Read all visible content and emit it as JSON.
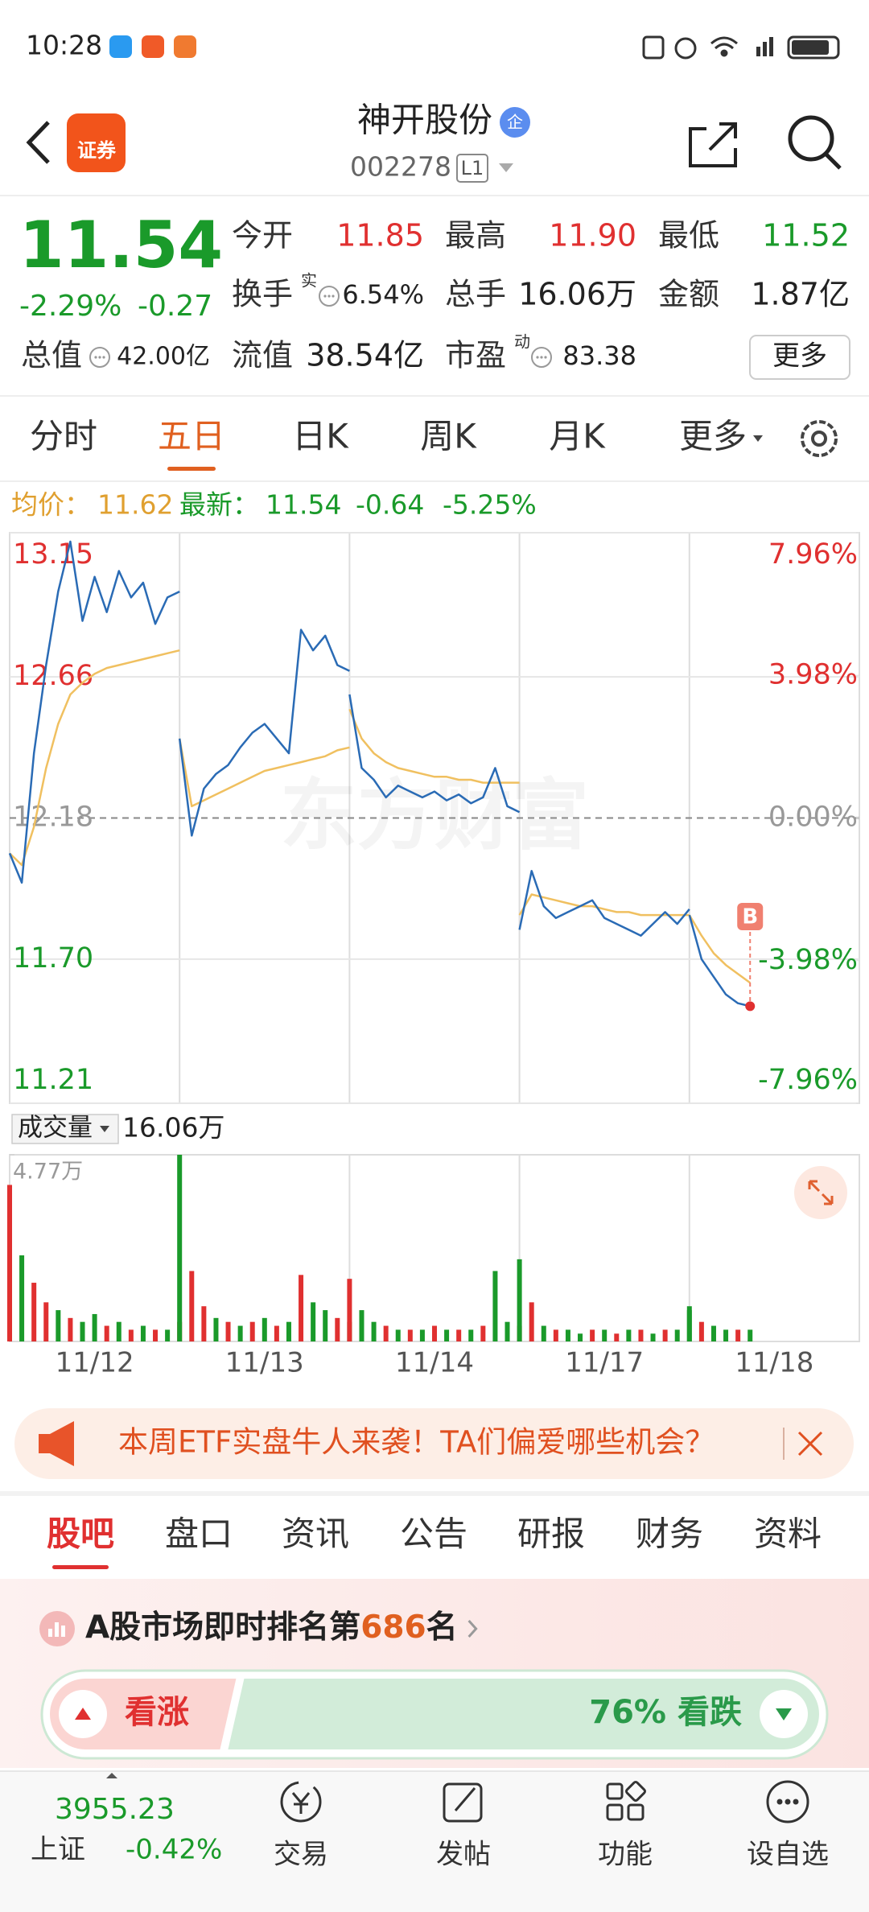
{
  "status_bar": {
    "time": "10:28"
  },
  "header": {
    "app_label": "证券",
    "title": "神开股份",
    "badge": "企",
    "code": "002278",
    "level": "L1"
  },
  "quote": {
    "price": "11.54",
    "change_pct": "-2.29%",
    "change": "-0.27",
    "stats": [
      {
        "label": "今开",
        "value": "11.85",
        "color": "#e03030"
      },
      {
        "label": "最高",
        "value": "11.90",
        "color": "#e03030"
      },
      {
        "label": "最低",
        "value": "11.52",
        "color": "#1a9a2a"
      },
      {
        "label": "换手",
        "sup": "实",
        "value": "6.54%"
      },
      {
        "label": "总手",
        "value": "16.06万"
      },
      {
        "label": "金额",
        "value": "1.87亿"
      },
      {
        "label": "总值",
        "value": "42.00亿"
      },
      {
        "label": "流值",
        "value": "38.54亿"
      },
      {
        "label": "市盈",
        "sup": "动",
        "value": "83.38"
      }
    ],
    "more": "更多"
  },
  "tabs": {
    "items": [
      "分时",
      "五日",
      "日K",
      "周K",
      "月K",
      "更多"
    ],
    "active": 1
  },
  "chart": {
    "type": "line",
    "info": {
      "avg_label": "均价：",
      "avg": "11.62",
      "last_label": "最新：",
      "last": "11.54",
      "change": "-0.64",
      "change_pct": "-5.25%"
    },
    "watermark": "东方财富",
    "ylim": [
      11.21,
      13.15
    ],
    "yticks": [
      13.15,
      12.66,
      12.18,
      {
        "value": 11.7,
        "label": "11.70"
      },
      11.21
    ],
    "y2lim": [
      -7.96,
      7.96
    ],
    "y2ticks": [
      {
        "value": 7.96,
        "label": "7.96%"
      },
      {
        "value": 3.98,
        "label": "3.98%"
      },
      {
        "value": 0,
        "label": "0.00%"
      },
      {
        "value": -3.98,
        "label": "-3.98%"
      },
      {
        "value": -7.96,
        "label": "-7.96%"
      }
    ],
    "days": [
      "11/12",
      "11/13",
      "11/14",
      "11/17",
      "11/18"
    ],
    "price_color": "#2a6bb5",
    "avg_color": "#f0c060",
    "price": [
      [
        12.06,
        11.96,
        12.4,
        12.7,
        12.95,
        13.12,
        12.85,
        13.0,
        12.88,
        13.02,
        12.93,
        12.98,
        12.84,
        12.93,
        12.95
      ],
      [
        12.45,
        12.12,
        12.28,
        12.33,
        12.36,
        12.42,
        12.47,
        12.5,
        12.45,
        12.4,
        12.82,
        12.75,
        12.8,
        12.7,
        12.68
      ],
      [
        12.6,
        12.35,
        12.31,
        12.25,
        12.29,
        12.27,
        12.25,
        12.27,
        12.24,
        12.26,
        12.23,
        12.25,
        12.35,
        12.22,
        12.2
      ],
      [
        11.8,
        12.0,
        11.88,
        11.84,
        11.86,
        11.88,
        11.9,
        11.84,
        11.82,
        11.8,
        11.78,
        11.82,
        11.86,
        11.82,
        11.87
      ],
      [
        11.85,
        11.7,
        11.64,
        11.58,
        11.55,
        11.54
      ]
    ],
    "avg": [
      [
        12.06,
        12.02,
        12.15,
        12.35,
        12.5,
        12.6,
        12.64,
        12.67,
        12.69,
        12.7,
        12.71,
        12.72,
        12.73,
        12.74,
        12.75
      ],
      [
        12.45,
        12.22,
        12.24,
        12.26,
        12.28,
        12.3,
        12.32,
        12.34,
        12.35,
        12.36,
        12.37,
        12.38,
        12.39,
        12.41,
        12.42
      ],
      [
        12.55,
        12.45,
        12.4,
        12.37,
        12.35,
        12.34,
        12.33,
        12.32,
        12.32,
        12.31,
        12.31,
        12.3,
        12.3,
        12.3,
        12.3
      ],
      [
        11.85,
        11.92,
        11.91,
        11.9,
        11.89,
        11.88,
        11.88,
        11.87,
        11.86,
        11.86,
        11.85,
        11.85,
        11.85,
        11.85,
        11.85
      ],
      [
        11.85,
        11.78,
        11.72,
        11.68,
        11.65,
        11.62
      ]
    ],
    "marker": "B",
    "volume": {
      "label": "成交量",
      "total": "16.06万",
      "ylim": [
        0,
        4.77
      ],
      "yticks": [
        {
          "value": 4.77,
          "label": "4.77万"
        }
      ],
      "values": [
        [
          4.0,
          2.2,
          1.5,
          1.0,
          0.8,
          0.6,
          0.5,
          0.7,
          0.4,
          0.5,
          0.3,
          0.4,
          0.3,
          0.3,
          0.5
        ],
        [
          4.77,
          1.8,
          0.9,
          0.6,
          0.5,
          0.4,
          0.5,
          0.6,
          0.4,
          0.5,
          1.7,
          1.0,
          0.8,
          0.6,
          0.5
        ],
        [
          1.6,
          0.8,
          0.5,
          0.4,
          0.3,
          0.3,
          0.3,
          0.4,
          0.3,
          0.3,
          0.3,
          0.4,
          1.8,
          0.5,
          0.4
        ],
        [
          2.1,
          1.0,
          0.4,
          0.3,
          0.3,
          0.2,
          0.3,
          0.3,
          0.2,
          0.3,
          0.3,
          0.2,
          0.3,
          0.3,
          0.8
        ],
        [
          0.9,
          0.5,
          0.4,
          0.3,
          0.3,
          0.3
        ]
      ],
      "colors": [
        [
          "#e03030",
          "#1a9a2a",
          "#e03030",
          "#e03030",
          "#1a9a2a",
          "#e03030",
          "#1a9a2a",
          "#1a9a2a",
          "#e03030",
          "#1a9a2a",
          "#e03030",
          "#1a9a2a",
          "#e03030",
          "#1a9a2a",
          "#e03030"
        ],
        [
          "#1a9a2a",
          "#e03030",
          "#e03030",
          "#1a9a2a",
          "#e03030",
          "#1a9a2a",
          "#e03030",
          "#1a9a2a",
          "#e03030",
          "#1a9a2a",
          "#e03030",
          "#1a9a2a",
          "#1a9a2a",
          "#e03030",
          "#1a9a2a"
        ],
        [
          "#e03030",
          "#1a9a2a",
          "#1a9a2a",
          "#e03030",
          "#1a9a2a",
          "#e03030",
          "#1a9a2a",
          "#e03030",
          "#1a9a2a",
          "#e03030",
          "#1a9a2a",
          "#e03030",
          "#1a9a2a",
          "#1a9a2a",
          "#e03030"
        ],
        [
          "#1a9a2a",
          "#e03030",
          "#1a9a2a",
          "#e03030",
          "#1a9a2a",
          "#1a9a2a",
          "#e03030",
          "#1a9a2a",
          "#e03030",
          "#1a9a2a",
          "#e03030",
          "#1a9a2a",
          "#e03030",
          "#1a9a2a",
          "#1a9a2a"
        ],
        [
          "#1a9a2a",
          "#e03030",
          "#1a9a2a",
          "#1a9a2a",
          "#e03030",
          "#1a9a2a"
        ]
      ]
    }
  },
  "banner": {
    "text": "本周ETF实盘牛人来袭！TA们偏爱哪些机会？"
  },
  "section_tabs": {
    "items": [
      "股吧",
      "盘口",
      "资讯",
      "公告",
      "研报",
      "财务",
      "资料"
    ],
    "active": 0
  },
  "ranking": {
    "prefix": "A股市场即时排名第",
    "rank": "686",
    "suffix": "名"
  },
  "vote": {
    "up_label": "看涨",
    "down_pct": {
      "value": 76,
      "label": "76%"
    },
    "down_label": "看跌"
  },
  "bottom": {
    "index": {
      "value": "3955.23",
      "name": "上证",
      "change": "-0.42%"
    },
    "nav": [
      "交易",
      "发帖",
      "功能",
      "设自选"
    ]
  }
}
